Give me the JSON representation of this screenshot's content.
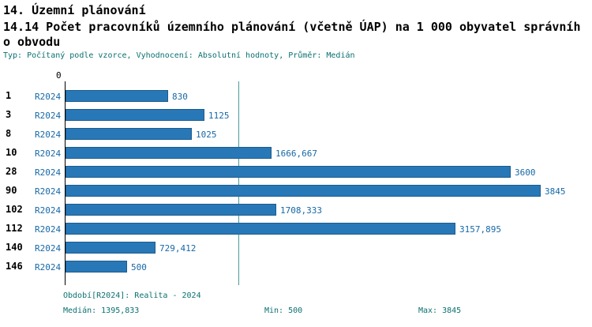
{
  "header": {
    "title1": "14. Územní plánování",
    "title2_line1": "14.14 Počet pracovníků územního plánování (včetně ÚAP) na 1 000 obyvatel správníh",
    "title2_line2": "o obvodu",
    "meta": "Typ: Počítaný podle vzorce, Vyhodnocení: Absolutní hodnoty, Průměr: Medián"
  },
  "chart_data": {
    "type": "bar",
    "orientation": "horizontal",
    "title": "14.14 Počet pracovníků územního plánování (včetně ÚAP) na 1 000 obyvatel správního obvodu",
    "categories": [
      "1",
      "3",
      "8",
      "10",
      "28",
      "90",
      "102",
      "112",
      "140",
      "146"
    ],
    "series": [
      {
        "name": "R2024",
        "values": [
          830,
          1125,
          1025,
          1666.667,
          3600,
          3845,
          1708.333,
          3157.895,
          729.412,
          500
        ]
      }
    ],
    "value_labels": [
      "830",
      "1125",
      "1025",
      "1666,667",
      "3600",
      "3845",
      "1708,333",
      "3157,895",
      "729,412",
      "500"
    ],
    "xlim": [
      0,
      3845
    ],
    "axis_zero_label": "0",
    "median": 1395.833,
    "grid": false,
    "legend": "none",
    "bar_color": "#2878B8",
    "median_line_color": "#4D9B9B"
  },
  "footer": {
    "period": "Období[R2024]: Realita - 2024",
    "median": "Medián: 1395,833",
    "min": "Min: 500",
    "max": "Max: 3845"
  }
}
